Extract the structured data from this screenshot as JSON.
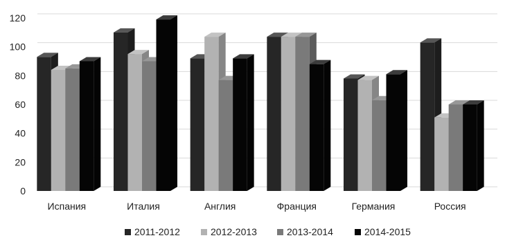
{
  "chart_data": {
    "type": "bar",
    "title": "",
    "xlabel": "",
    "ylabel": "",
    "ylim": [
      0,
      120
    ],
    "yticks": [
      0,
      20,
      40,
      60,
      80,
      100,
      120
    ],
    "grid": true,
    "legend_position": "bottom",
    "categories": [
      "Испания",
      "Италия",
      "Англия",
      "Франция",
      "Германия",
      "Россия"
    ],
    "series": [
      {
        "name": "2011-2012",
        "color": "#262626",
        "values": [
          93,
          110,
          92,
          107,
          78,
          103
        ]
      },
      {
        "name": "2012-2013",
        "color": "#b2b2b2",
        "values": [
          84,
          95,
          107,
          107,
          77,
          51
        ]
      },
      {
        "name": "2013-2014",
        "color": "#7a7a7a",
        "values": [
          85,
          90,
          77,
          107,
          63,
          60
        ]
      },
      {
        "name": "2014-2015",
        "color": "#050505",
        "values": [
          90,
          119,
          92,
          88,
          81,
          60
        ]
      }
    ]
  }
}
